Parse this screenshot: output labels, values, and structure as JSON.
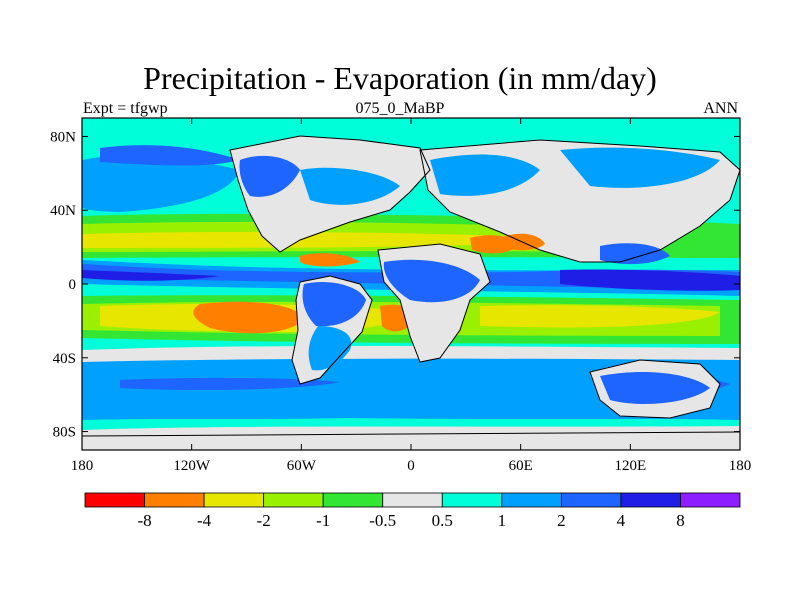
{
  "title": "Precipitation - Evaporation (in mm/day)",
  "subtitle_left": "Expt = tfgwp",
  "subtitle_center": "075_0_MaBP",
  "subtitle_right": "ANN",
  "map": {
    "lon_range": [
      -180,
      180
    ],
    "lat_range": [
      -90,
      90
    ],
    "x_ticks": [
      {
        "lon": -180,
        "label": "180"
      },
      {
        "lon": -120,
        "label": "120W"
      },
      {
        "lon": -60,
        "label": "60W"
      },
      {
        "lon": 0,
        "label": "0"
      },
      {
        "lon": 60,
        "label": "60E"
      },
      {
        "lon": 120,
        "label": "120E"
      },
      {
        "lon": 180,
        "label": "180"
      }
    ],
    "y_ticks": [
      {
        "lat": 80,
        "label": "80N"
      },
      {
        "lat": 40,
        "label": "40N"
      },
      {
        "lat": 0,
        "label": "0"
      },
      {
        "lat": -40,
        "label": "40S"
      },
      {
        "lat": -80,
        "label": "80S"
      }
    ],
    "grid": false
  },
  "colorbar": {
    "colors": [
      "#ff0000",
      "#ff8000",
      "#e6e600",
      "#99f000",
      "#33e633",
      "#e6e6e6",
      "#00ffd9",
      "#00a0ff",
      "#1e64ff",
      "#1e1ee6",
      "#8c1eff"
    ],
    "labels": [
      "-8",
      "-4",
      "-2",
      "-1",
      "-0.5",
      "0.5",
      "1",
      "2",
      "4",
      "8"
    ]
  },
  "colors": {
    "ocean_background": "#00ffd9",
    "land_neutral": "#e6e6e6",
    "coastline": "#000000"
  }
}
